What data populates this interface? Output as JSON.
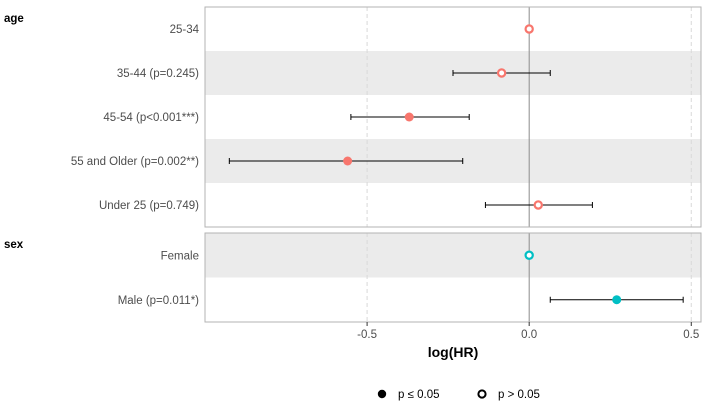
{
  "chart_data": {
    "type": "forest",
    "xlabel": "log(HR)",
    "xlim": [
      -1.0,
      0.53
    ],
    "x_ticks": [
      -0.5,
      0.0,
      0.5
    ],
    "x_tick_labels": [
      "-0.5",
      "0.0",
      "0.5"
    ],
    "reference_line": 0,
    "grid": "dashed vertical at major ticks",
    "panels": [
      {
        "name": "age",
        "color": "#F8766D",
        "rows": [
          {
            "label": "25-34",
            "estimate": 0.0,
            "lower": null,
            "upper": null,
            "significant": false,
            "shaded": false
          },
          {
            "label": "35-44 (p=0.245)",
            "estimate": -0.085,
            "lower": -0.235,
            "upper": 0.065,
            "significant": false,
            "shaded": true
          },
          {
            "label": "45-54 (p<0.001***)",
            "estimate": -0.37,
            "lower": -0.55,
            "upper": -0.185,
            "significant": true,
            "shaded": false
          },
          {
            "label": "55 and Older (p=0.002**)",
            "estimate": -0.56,
            "lower": -0.925,
            "upper": -0.205,
            "significant": true,
            "shaded": true
          },
          {
            "label": "Under 25 (p=0.749)",
            "estimate": 0.028,
            "lower": -0.135,
            "upper": 0.195,
            "significant": false,
            "shaded": false
          }
        ]
      },
      {
        "name": "sex",
        "color": "#00BFC4",
        "rows": [
          {
            "label": "Female",
            "estimate": 0.0,
            "lower": null,
            "upper": null,
            "significant": false,
            "shaded": true
          },
          {
            "label": "Male (p=0.011*)",
            "estimate": 0.27,
            "lower": 0.065,
            "upper": 0.475,
            "significant": true,
            "shaded": false
          }
        ]
      }
    ],
    "legend": {
      "position": "bottom",
      "items": [
        {
          "label": "p ≤ 0.05",
          "filled": true
        },
        {
          "label": "p > 0.05",
          "filled": false
        }
      ]
    }
  }
}
